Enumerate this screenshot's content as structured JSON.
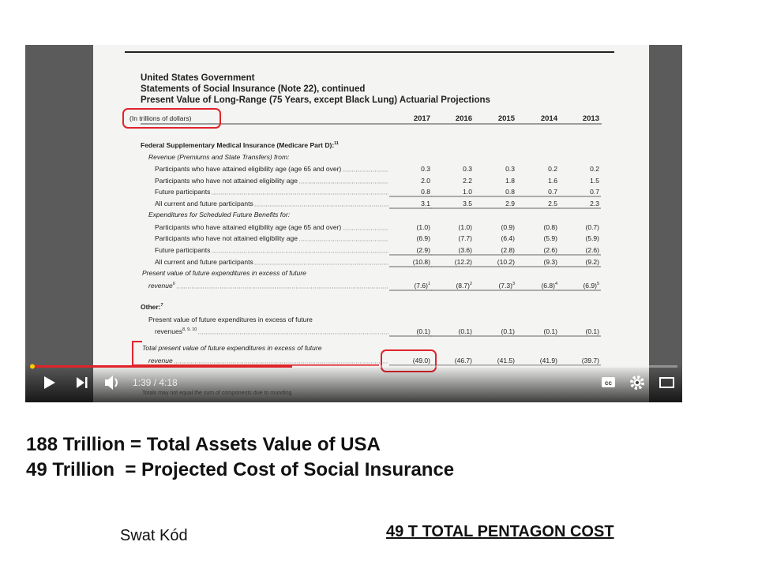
{
  "video": {
    "title_lines": [
      "United States Government",
      "Statements of Social Insurance (Note 22), continued",
      "Present Value of Long-Range (75 Years, except Black Lung) Actuarial Projections"
    ],
    "unit": "(In trillions of dollars)",
    "years": [
      "2017",
      "2016",
      "2015",
      "2014",
      "2013"
    ],
    "rows": [
      {
        "kind": "section",
        "label": "Federal Supplementary Medical Insurance (Medicare Part D):",
        "note": "11"
      },
      {
        "kind": "heading",
        "label": "Revenue (Premiums and State Transfers) from:"
      },
      {
        "kind": "item",
        "label": "Participants who have attained eligibility age (age 65 and over)",
        "values": [
          "0.3",
          "0.3",
          "0.3",
          "0.2",
          "0.2"
        ]
      },
      {
        "kind": "item",
        "label": "Participants who have not attained eligibility age",
        "values": [
          "2.0",
          "2.2",
          "1.8",
          "1.6",
          "1.5"
        ]
      },
      {
        "kind": "item",
        "label": "Future participants",
        "values": [
          "0.8",
          "1.0",
          "0.8",
          "0.7",
          "0.7"
        ],
        "underline": true
      },
      {
        "kind": "item",
        "label": "All current and future participants",
        "values": [
          "3.1",
          "3.5",
          "2.9",
          "2.5",
          "2.3"
        ],
        "underline": true
      },
      {
        "kind": "heading",
        "label": "Expenditures for Scheduled Future Benefits for:"
      },
      {
        "kind": "item",
        "label": "Participants who have attained eligibility age (age 65 and over)",
        "values": [
          "(1.0)",
          "(1.0)",
          "(0.9)",
          "(0.8)",
          "(0.7)"
        ]
      },
      {
        "kind": "item",
        "label": "Participants who have not attained eligibility age",
        "values": [
          "(6.9)",
          "(7.7)",
          "(6.4)",
          "(5.9)",
          "(5.9)"
        ]
      },
      {
        "kind": "item",
        "label": "Future participants",
        "values": [
          "(2.9)",
          "(3.6)",
          "(2.8)",
          "(2.6)",
          "(2.6)"
        ],
        "underline": true
      },
      {
        "kind": "item",
        "label": "All current and future participants",
        "values": [
          "(10.8)",
          "(12.2)",
          "(10.2)",
          "(9.3)",
          "(9.2)"
        ],
        "underline": true
      },
      {
        "kind": "summary",
        "label": "Present value of future expenditures in excess of future"
      },
      {
        "kind": "summary-item",
        "label": "revenue",
        "note": "6",
        "values": [
          "(7.6)",
          "(8.7)",
          "(7.3)",
          "(6.8)",
          "(6.9)"
        ],
        "value_notes": [
          "1",
          "2",
          "3",
          "4",
          "5"
        ],
        "underline": true
      },
      {
        "kind": "section",
        "label": "Other:",
        "note": "7"
      },
      {
        "kind": "label",
        "label": "Present value of future expenditures in excess of future"
      },
      {
        "kind": "item",
        "label": "revenues",
        "note": "8, 9, 10",
        "values": [
          "(0.1)",
          "(0.1)",
          "(0.1)",
          "(0.1)",
          "(0.1)"
        ],
        "underline": true
      },
      {
        "kind": "summary",
        "label": "Total present value of future expenditures in excess of future"
      },
      {
        "kind": "summary-item",
        "label": "revenue",
        "values": [
          "(49.0)",
          "(46.7)",
          "(41.5)",
          "(41.9)",
          "(39.7)"
        ],
        "underline": true
      }
    ],
    "footnote": "Totals may not equal the sum of components due to rounding",
    "time": "1:39 / 4:18"
  },
  "slide": {
    "lines": [
      "188 Trillion = Total Assets Value of USA",
      "49 Trillion  = Projected Cost of Social Insurance"
    ],
    "author": "Swat Kód",
    "caption": "49 T TOTAL PENTAGON COST"
  }
}
